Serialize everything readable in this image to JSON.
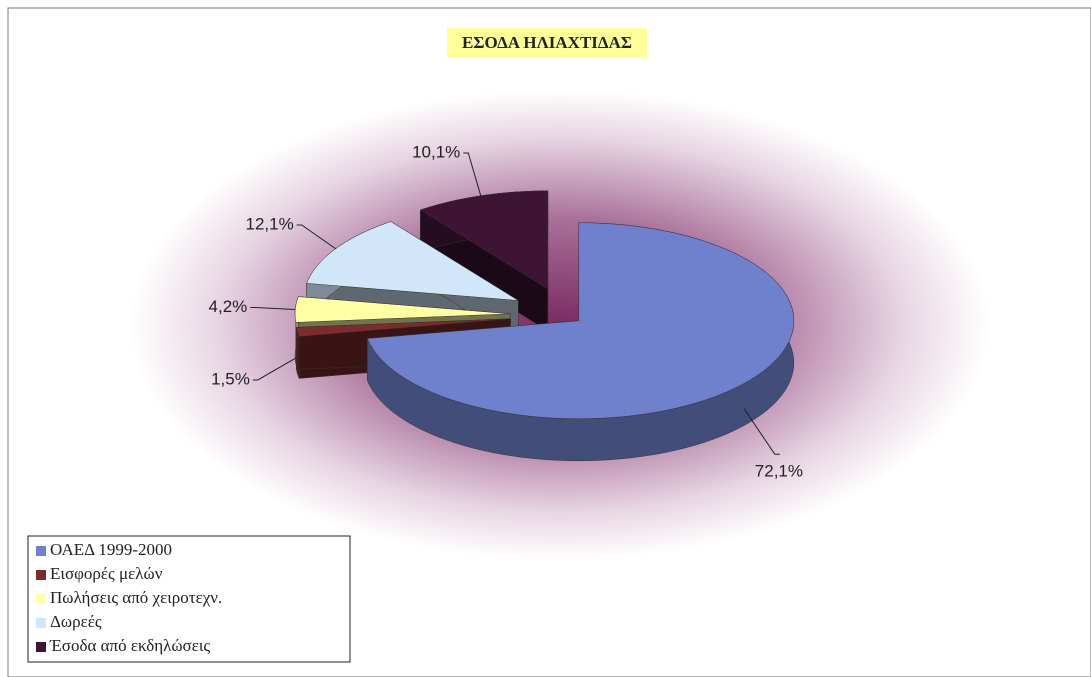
{
  "chart_data": {
    "type": "pie",
    "title": "ΕΣΟΔΑ ΗΛΙΑΧΤΙΔΑΣ",
    "categories": [
      "ΟΑΕΔ 1999-2000",
      "Εισφορές μελών",
      "Πωλήσεις από χειροτεχν.",
      "Δωρεές",
      "Έσοδα από εκδηλώσεις"
    ],
    "values": [
      72.1,
      1.5,
      4.2,
      12.1,
      10.1
    ],
    "value_labels": [
      "72,1%",
      "1,5%",
      "4,2%",
      "12,1%",
      "10,1%"
    ],
    "colors": [
      "#6f80cc",
      "#7d2c2c",
      "#ffffa6",
      "#d2e6fa",
      "#3e1435"
    ],
    "legend": "bottom-left"
  }
}
